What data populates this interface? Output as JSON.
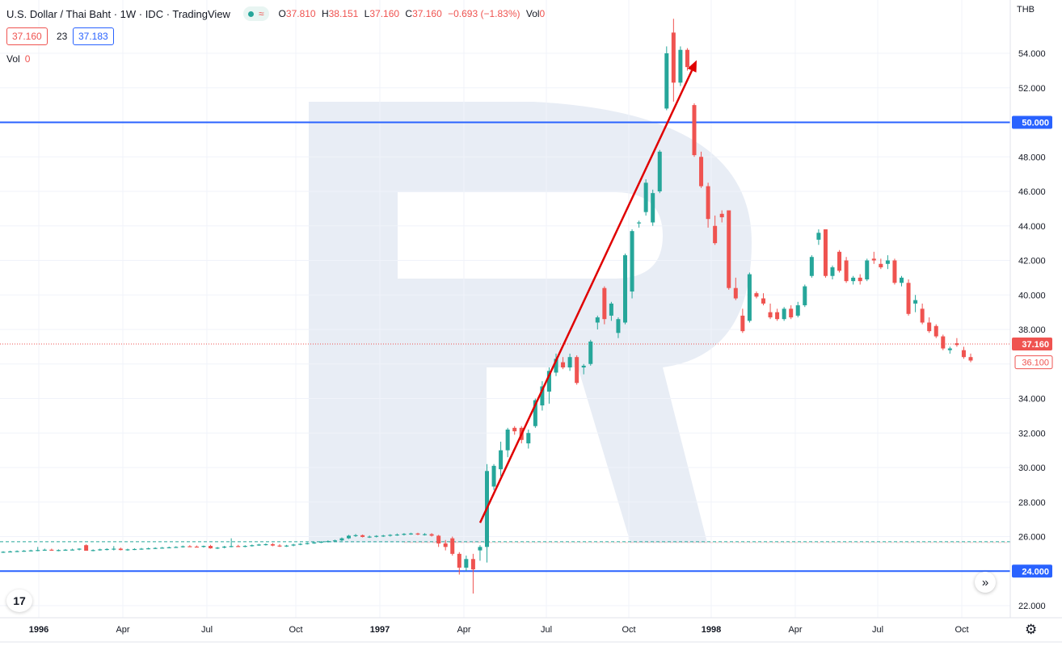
{
  "legend": {
    "title": "U.S. Dollar / Thai Baht · 1W · IDC · TradingView",
    "wave_icon": "≈",
    "open_label": "O",
    "open": "37.810",
    "high_label": "H",
    "high": "38.151",
    "low_label": "L",
    "low": "37.160",
    "close_label": "C",
    "close": "37.160",
    "change": "−0.693 (−1.83%)",
    "vol_label": "Vol",
    "vol": "0"
  },
  "quote": {
    "bid": "37.160",
    "spread": "23",
    "ask": "37.183"
  },
  "volume_row": {
    "label": "Vol",
    "value": "0"
  },
  "currency": "THB",
  "scroll_icon": "»",
  "logo_text": "17",
  "settings_icon": "⚙",
  "colors": {
    "up": "#26a69a",
    "down": "#ef5350",
    "level_line": "#2962ff",
    "arrow": "#e00000",
    "watermark": "#e5eaf3"
  },
  "chart_data": {
    "type": "candlestick",
    "timeframe": "1W",
    "ylim": [
      21.5,
      56
    ],
    "x_tick_labels": [
      "1996",
      "Apr",
      "Jul",
      "Oct",
      "1997",
      "Apr",
      "Jul",
      "Oct",
      "1998",
      "Apr",
      "Jul",
      "Oct"
    ],
    "y_ticks": [
      22,
      24,
      26,
      28,
      30,
      32,
      34,
      36,
      38,
      40,
      42,
      44,
      46,
      48,
      50,
      52,
      54
    ],
    "y_tick_labels": [
      "22.000",
      "24.000",
      "26.000",
      "28.000",
      "30.000",
      "32.000",
      "34.000",
      "36.000",
      "38.000",
      "40.000",
      "42.000",
      "44.000",
      "46.000",
      "48.000",
      "50.000",
      "52.000",
      "54.000"
    ],
    "horizontal_levels": [
      {
        "price": 50.0,
        "label": "50.000"
      },
      {
        "price": 24.0,
        "label": "24.000"
      }
    ],
    "last_price": {
      "price": 37.16,
      "label": "37.160"
    },
    "target_price": {
      "price": 36.1,
      "label": "36.100"
    },
    "dashed_level": 25.7,
    "arrow": {
      "from": {
        "date": "1997-05",
        "price": 26.8
      },
      "to": {
        "date": "1997-12",
        "price": 53.6
      }
    },
    "candles": [
      [
        25.1,
        25.15,
        25.05,
        25.12
      ],
      [
        25.12,
        25.18,
        25.08,
        25.14
      ],
      [
        25.14,
        25.2,
        25.1,
        25.16
      ],
      [
        25.16,
        25.22,
        25.12,
        25.18
      ],
      [
        25.18,
        25.24,
        25.14,
        25.2
      ],
      [
        25.2,
        25.4,
        25.15,
        25.22
      ],
      [
        25.22,
        25.3,
        25.18,
        25.24
      ],
      [
        25.24,
        25.3,
        25.18,
        25.2
      ],
      [
        25.2,
        25.26,
        25.15,
        25.22
      ],
      [
        25.22,
        25.28,
        25.18,
        25.24
      ],
      [
        25.24,
        25.3,
        25.2,
        25.25
      ],
      [
        25.25,
        25.32,
        25.2,
        25.3
      ],
      [
        25.5,
        25.55,
        25.2,
        25.18
      ],
      [
        25.18,
        25.26,
        25.15,
        25.22
      ],
      [
        25.22,
        25.3,
        25.18,
        25.26
      ],
      [
        25.26,
        25.32,
        25.2,
        25.28
      ],
      [
        25.28,
        25.45,
        25.2,
        25.3
      ],
      [
        25.3,
        25.36,
        25.2,
        25.22
      ],
      [
        25.22,
        25.3,
        25.18,
        25.26
      ],
      [
        25.26,
        25.32,
        25.22,
        25.28
      ],
      [
        25.28,
        25.34,
        25.24,
        25.3
      ],
      [
        25.3,
        25.36,
        25.26,
        25.32
      ],
      [
        25.32,
        25.38,
        25.28,
        25.34
      ],
      [
        25.34,
        25.4,
        25.3,
        25.36
      ],
      [
        25.36,
        25.42,
        25.32,
        25.38
      ],
      [
        25.38,
        25.44,
        25.34,
        25.4
      ],
      [
        25.4,
        25.48,
        25.36,
        25.44
      ],
      [
        25.44,
        25.5,
        25.4,
        25.42
      ],
      [
        25.42,
        25.48,
        25.38,
        25.4
      ],
      [
        25.4,
        25.48,
        25.36,
        25.46
      ],
      [
        25.46,
        25.52,
        25.3,
        25.32
      ],
      [
        25.32,
        25.4,
        25.28,
        25.36
      ],
      [
        25.36,
        25.46,
        25.32,
        25.42
      ],
      [
        25.42,
        25.9,
        25.38,
        25.45
      ],
      [
        25.45,
        25.52,
        25.4,
        25.42
      ],
      [
        25.42,
        25.5,
        25.38,
        25.46
      ],
      [
        25.46,
        25.54,
        25.42,
        25.5
      ],
      [
        25.5,
        25.58,
        25.46,
        25.54
      ],
      [
        25.54,
        25.6,
        25.48,
        25.56
      ],
      [
        25.56,
        25.62,
        25.44,
        25.48
      ],
      [
        25.48,
        25.56,
        25.4,
        25.44
      ],
      [
        25.44,
        25.52,
        25.4,
        25.48
      ],
      [
        25.48,
        25.58,
        25.44,
        25.54
      ],
      [
        25.54,
        25.62,
        25.5,
        25.58
      ],
      [
        25.58,
        25.66,
        25.54,
        25.62
      ],
      [
        25.62,
        25.7,
        25.58,
        25.66
      ],
      [
        25.66,
        25.74,
        25.62,
        25.7
      ],
      [
        25.7,
        25.78,
        25.66,
        25.74
      ],
      [
        25.74,
        25.82,
        25.7,
        25.78
      ],
      [
        25.78,
        25.95,
        25.74,
        25.9
      ],
      [
        25.9,
        26.1,
        25.86,
        26.05
      ],
      [
        26.05,
        26.15,
        25.98,
        26.08
      ],
      [
        26.08,
        26.12,
        25.95,
        25.98
      ],
      [
        25.98,
        26.06,
        25.92,
        26.0
      ],
      [
        26.0,
        26.08,
        25.95,
        26.04
      ],
      [
        26.04,
        26.1,
        25.98,
        26.06
      ],
      [
        26.06,
        26.14,
        26.0,
        26.1
      ],
      [
        26.1,
        26.18,
        26.04,
        26.12
      ],
      [
        26.12,
        26.2,
        26.06,
        26.16
      ],
      [
        26.16,
        26.22,
        26.1,
        26.18
      ],
      [
        26.18,
        26.22,
        26.08,
        26.12
      ],
      [
        26.12,
        26.2,
        26.06,
        26.14
      ],
      [
        26.14,
        26.2,
        26.0,
        26.05
      ],
      [
        26.05,
        26.1,
        25.4,
        25.6
      ],
      [
        25.6,
        25.8,
        25.2,
        25.4
      ],
      [
        25.9,
        26.0,
        24.9,
        25.0
      ],
      [
        25.0,
        25.1,
        23.8,
        24.2
      ],
      [
        24.2,
        24.9,
        24.0,
        24.7
      ],
      [
        24.7,
        25.0,
        22.7,
        24.1
      ],
      [
        25.2,
        25.5,
        24.6,
        25.4
      ],
      [
        25.4,
        30.2,
        24.5,
        29.8
      ],
      [
        28.9,
        30.2,
        28.7,
        30.1
      ],
      [
        29.9,
        31.5,
        29.5,
        31.0
      ],
      [
        31.0,
        32.3,
        30.6,
        32.2
      ],
      [
        32.3,
        32.4,
        31.9,
        32.1
      ],
      [
        32.3,
        32.4,
        31.4,
        31.6
      ],
      [
        31.4,
        32.2,
        31.1,
        32.0
      ],
      [
        32.4,
        34.0,
        32.3,
        33.9
      ],
      [
        33.6,
        35.0,
        33.3,
        34.7
      ],
      [
        34.4,
        35.8,
        33.7,
        35.6
      ],
      [
        35.5,
        36.6,
        35.3,
        36.3
      ],
      [
        36.1,
        36.4,
        35.7,
        35.8
      ],
      [
        35.8,
        36.6,
        35.6,
        36.4
      ],
      [
        36.4,
        36.5,
        34.8,
        34.9
      ],
      [
        35.8,
        36.0,
        35.4,
        35.9
      ],
      [
        36.0,
        37.4,
        35.9,
        37.3
      ],
      [
        38.4,
        38.8,
        38.0,
        38.7
      ],
      [
        40.4,
        40.5,
        38.3,
        38.6
      ],
      [
        38.8,
        39.6,
        38.5,
        39.5
      ],
      [
        37.8,
        38.7,
        37.5,
        38.6
      ],
      [
        38.4,
        42.4,
        38.3,
        42.3
      ],
      [
        40.2,
        43.8,
        39.8,
        43.7
      ],
      [
        44.2,
        44.3,
        43.9,
        44.2
      ],
      [
        44.8,
        46.7,
        44.6,
        46.5
      ],
      [
        44.2,
        46.1,
        44.0,
        45.9
      ],
      [
        46.0,
        48.4,
        45.9,
        48.3
      ],
      [
        50.8,
        54.4,
        50.7,
        54.0
      ],
      [
        55.2,
        56.0,
        51.2,
        52.3
      ],
      [
        52.3,
        54.4,
        52.1,
        54.2
      ],
      [
        54.2,
        54.3,
        53.0,
        53.2
      ],
      [
        51.0,
        51.1,
        48.0,
        48.1
      ],
      [
        48.0,
        48.3,
        46.2,
        46.3
      ],
      [
        46.3,
        46.5,
        43.9,
        44.4
      ],
      [
        44.0,
        44.6,
        42.9,
        43.0
      ],
      [
        44.7,
        44.9,
        44.2,
        44.5
      ],
      [
        44.9,
        44.9,
        40.3,
        40.4
      ],
      [
        40.4,
        41.0,
        39.7,
        39.8
      ],
      [
        38.8,
        39.2,
        37.8,
        37.9
      ],
      [
        38.5,
        41.3,
        38.4,
        41.2
      ],
      [
        40.1,
        40.2,
        39.8,
        39.9
      ],
      [
        39.8,
        40.1,
        39.4,
        39.5
      ],
      [
        39.0,
        39.5,
        38.6,
        38.7
      ],
      [
        39.0,
        39.2,
        38.5,
        38.6
      ],
      [
        38.6,
        39.3,
        38.5,
        39.2
      ],
      [
        39.2,
        39.4,
        38.6,
        38.7
      ],
      [
        38.8,
        39.6,
        38.7,
        39.4
      ],
      [
        39.4,
        40.6,
        39.3,
        40.5
      ],
      [
        41.1,
        42.3,
        41.0,
        42.2
      ],
      [
        43.2,
        43.8,
        42.9,
        43.6
      ],
      [
        43.8,
        43.8,
        41.0,
        41.1
      ],
      [
        41.1,
        41.7,
        40.9,
        41.6
      ],
      [
        42.5,
        42.6,
        41.3,
        41.4
      ],
      [
        42.0,
        42.2,
        40.7,
        40.8
      ],
      [
        40.8,
        41.1,
        40.6,
        41.0
      ],
      [
        41.0,
        41.2,
        40.6,
        40.8
      ],
      [
        40.9,
        42.1,
        40.8,
        42.0
      ],
      [
        42.1,
        42.5,
        41.8,
        42.0
      ],
      [
        41.8,
        42.1,
        41.5,
        41.6
      ],
      [
        41.8,
        42.3,
        41.5,
        42.0
      ],
      [
        42.0,
        42.1,
        40.6,
        40.7
      ],
      [
        40.7,
        41.1,
        40.5,
        41.0
      ],
      [
        40.7,
        40.9,
        38.8,
        38.9
      ],
      [
        39.5,
        40.0,
        39.0,
        39.7
      ],
      [
        39.2,
        39.5,
        38.3,
        38.4
      ],
      [
        38.4,
        38.7,
        37.8,
        37.9
      ],
      [
        38.2,
        38.3,
        37.5,
        37.6
      ],
      [
        37.6,
        37.7,
        36.8,
        36.9
      ],
      [
        36.8,
        37.0,
        36.6,
        36.9
      ],
      [
        37.2,
        37.5,
        37.0,
        37.1
      ],
      [
        36.8,
        37.0,
        36.3,
        36.4
      ],
      [
        36.4,
        36.6,
        36.1,
        36.2
      ]
    ]
  }
}
